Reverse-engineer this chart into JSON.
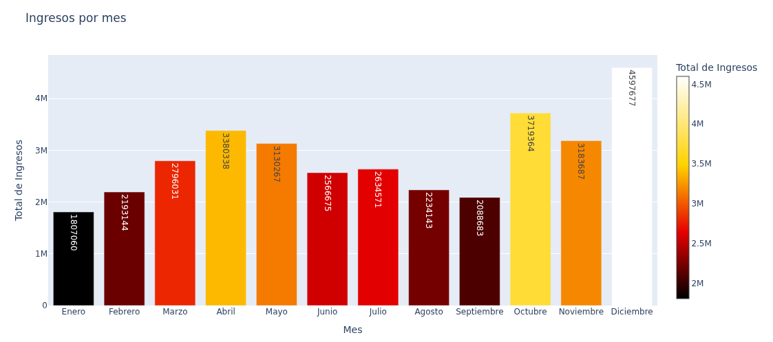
{
  "chart_data": {
    "type": "bar",
    "title": "Ingresos por mes",
    "xlabel": "Mes",
    "ylabel": "Total de Ingresos",
    "clabel": "Total de Ingresos",
    "categories": [
      "Enero",
      "Febrero",
      "Marzo",
      "Abril",
      "Mayo",
      "Junio",
      "Julio",
      "Agosto",
      "Septiembre",
      "Octubre",
      "Noviembre",
      "Diciembre"
    ],
    "values": [
      1807060,
      2193144,
      2796031,
      3380338,
      3130267,
      2566675,
      2634571,
      2234143,
      2088683,
      3719364,
      3183687,
      4597677
    ],
    "ylim": [
      0,
      4840000
    ],
    "yticks": [
      0,
      {
        "value": 1000000,
        "label": "1M"
      },
      {
        "value": 2000000,
        "label": "2M"
      },
      {
        "value": 3000000,
        "label": "3M"
      },
      {
        "value": 4000000,
        "label": "4M"
      }
    ],
    "clim": [
      1807060,
      4597677
    ],
    "cticks": [
      {
        "value": 2000000,
        "label": "2M"
      },
      {
        "value": 2500000,
        "label": "2.5M"
      },
      {
        "value": 3000000,
        "label": "3M"
      },
      {
        "value": 3500000,
        "label": "3.5M"
      },
      {
        "value": 4000000,
        "label": "4M"
      },
      {
        "value": 4500000,
        "label": "4.5M"
      }
    ],
    "data_labels": true,
    "grid": "y",
    "legend": false
  }
}
